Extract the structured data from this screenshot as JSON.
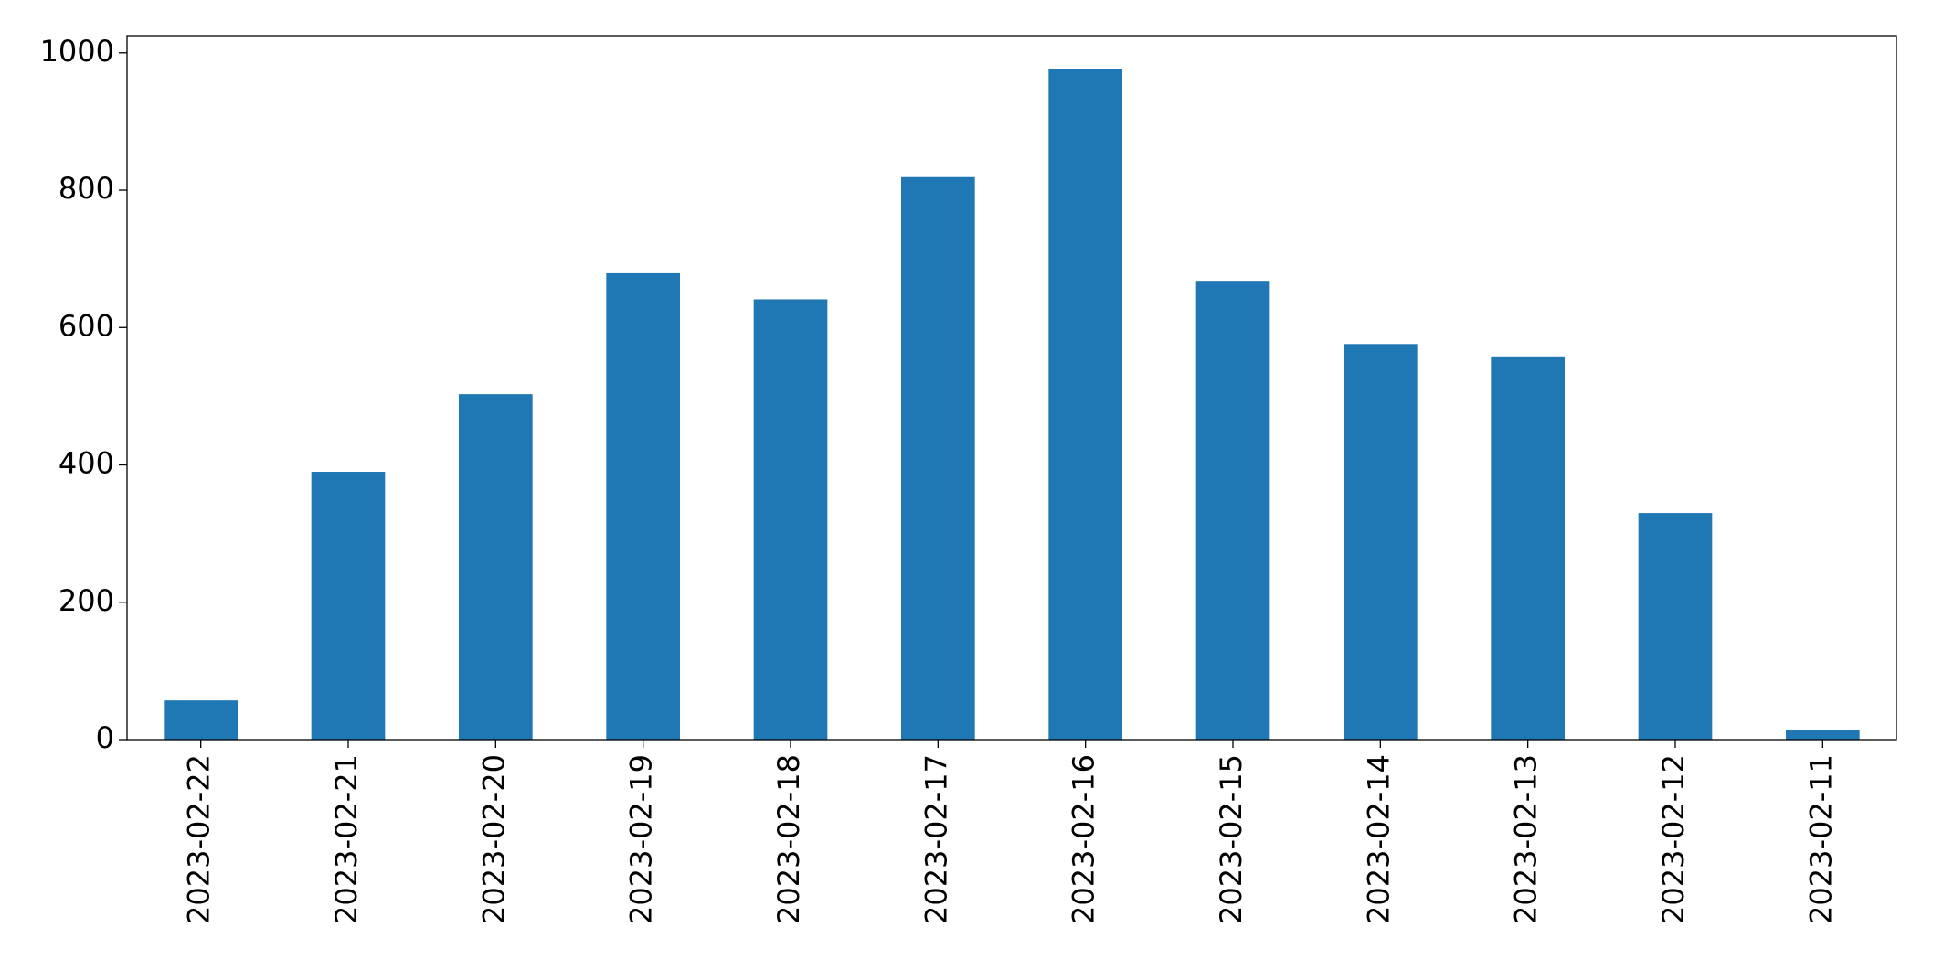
{
  "chart_data": {
    "type": "bar",
    "categories": [
      "2023-02-22",
      "2023-02-21",
      "2023-02-20",
      "2023-02-19",
      "2023-02-18",
      "2023-02-17",
      "2023-02-16",
      "2023-02-15",
      "2023-02-14",
      "2023-02-13",
      "2023-02-12",
      "2023-02-11"
    ],
    "values": [
      57,
      390,
      503,
      679,
      641,
      819,
      977,
      668,
      576,
      558,
      330,
      14
    ],
    "color": "#1f77b4",
    "ylim": [
      0,
      1025
    ],
    "yticks": [
      0,
      200,
      400,
      600,
      800,
      1000
    ],
    "grid": false
  }
}
